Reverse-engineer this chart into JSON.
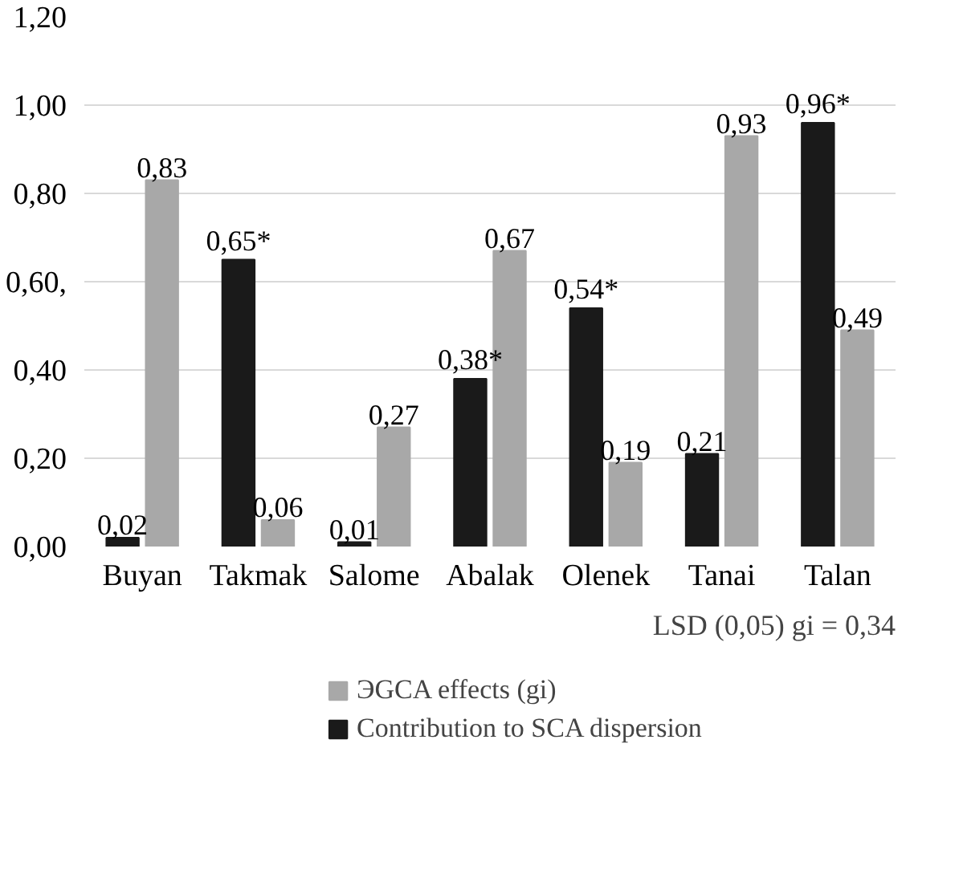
{
  "chart_data": {
    "type": "bar",
    "categories": [
      "Buyan",
      "Takmak",
      "Salome",
      "Abalak",
      "Olenek",
      "Tanai",
      "Talan"
    ],
    "series": [
      {
        "name": "Contribution to SCA dispersion",
        "color": "#1a1a1a",
        "values": [
          0.02,
          0.65,
          0.01,
          0.38,
          0.54,
          0.21,
          0.96
        ],
        "value_labels": [
          "0,02",
          "0,65*",
          "0,01",
          "0,38*",
          "0,54*",
          "0,21",
          "0,96*"
        ]
      },
      {
        "name": "ЭGCA effects (gi)",
        "color": "#a8a8a8",
        "values": [
          0.83,
          0.06,
          0.27,
          0.67,
          0.19,
          0.93,
          0.49
        ],
        "value_labels": [
          "0,83",
          "0,06",
          "0,27",
          "0,67",
          "0,19",
          "0,93",
          "0,49"
        ]
      }
    ],
    "ylim": [
      0,
      1.2
    ],
    "yticks": [
      {
        "value": 0,
        "label": "0,00"
      },
      {
        "value": 0.2,
        "label": "0,20"
      },
      {
        "value": 0.4,
        "label": "0,40"
      },
      {
        "value": 0.6,
        "label": "0,60,"
      },
      {
        "value": 0.8,
        "label": "0,80"
      },
      {
        "value": 1.0,
        "label": "1,00"
      },
      {
        "value": 1.2,
        "label": "1,20"
      }
    ],
    "grid": "y",
    "legend": "bottom",
    "annotations": [
      "LSD (0,05) gi = 0,34"
    ]
  }
}
